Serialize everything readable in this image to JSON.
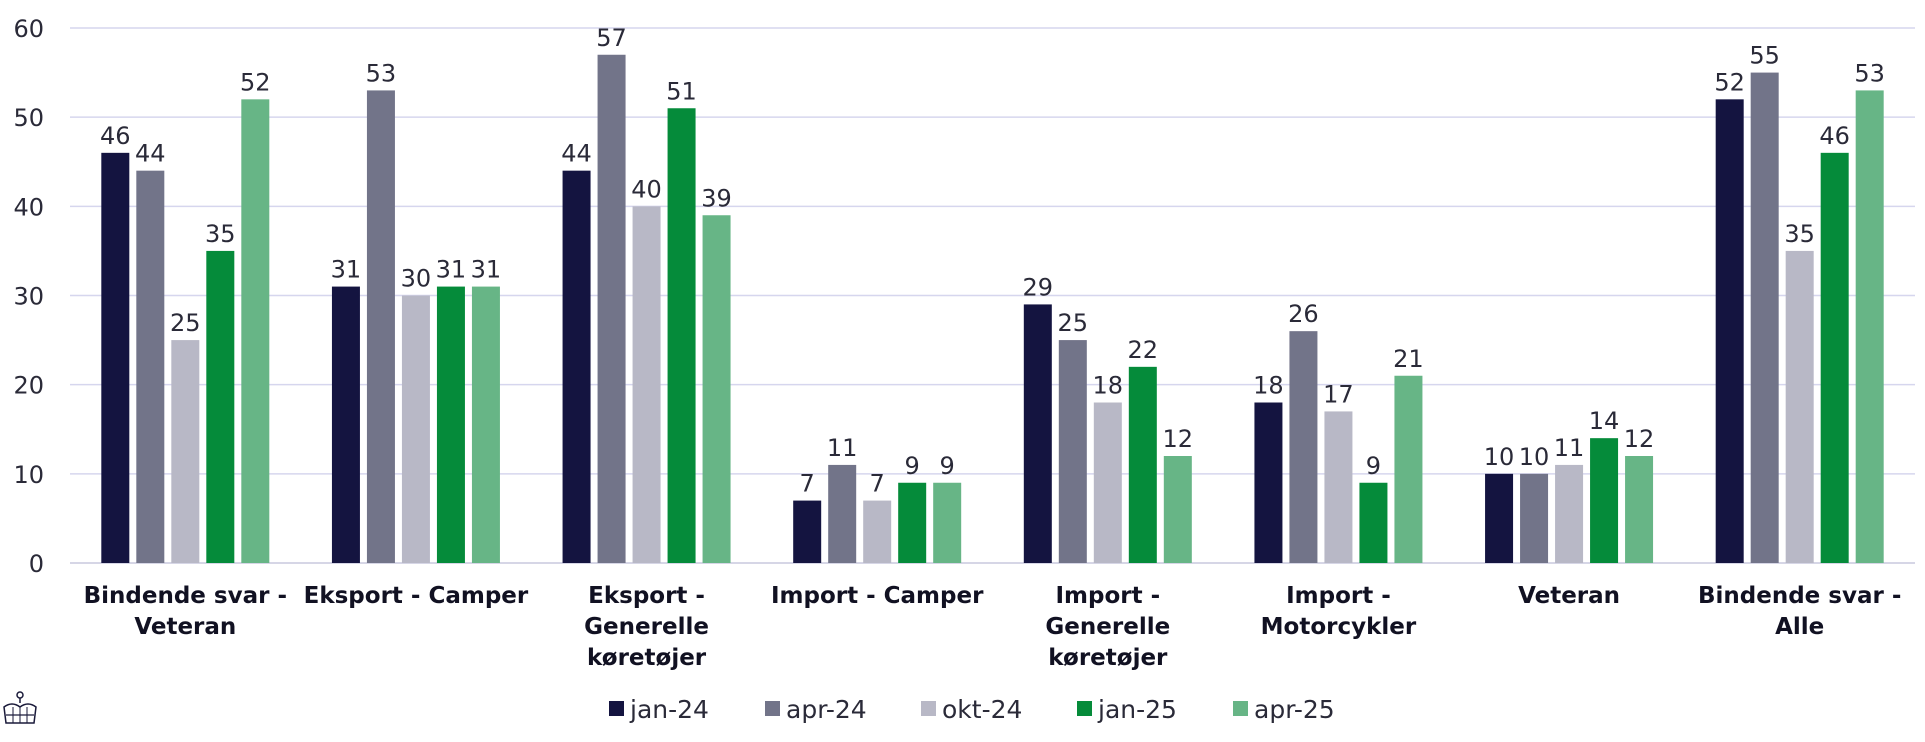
{
  "chart_data": {
    "type": "bar",
    "title": "",
    "xlabel": "",
    "ylabel": "",
    "ylim": [
      0,
      60
    ],
    "yticks": [
      0,
      10,
      20,
      30,
      40,
      50,
      60
    ],
    "grid": true,
    "legend_position": "bottom",
    "categories": [
      [
        "Bindende svar -",
        "Veteran"
      ],
      [
        "Eksport - Camper"
      ],
      [
        "Eksport -",
        "Generelle",
        "køretøjer"
      ],
      [
        "Import - Camper"
      ],
      [
        "Import -",
        "Generelle",
        "køretøjer"
      ],
      [
        "Import -",
        "Motorcykler"
      ],
      [
        "Veteran"
      ],
      [
        "Bindende svar -",
        "Alle"
      ]
    ],
    "series": [
      {
        "name": "jan-24",
        "color": "#141440",
        "values": [
          46,
          31,
          44,
          7,
          29,
          18,
          10,
          52
        ]
      },
      {
        "name": "apr-24",
        "color": "#727489",
        "values": [
          44,
          53,
          57,
          11,
          25,
          26,
          10,
          55
        ]
      },
      {
        "name": "okt-24",
        "color": "#b8b8c6",
        "values": [
          25,
          30,
          40,
          7,
          18,
          17,
          11,
          35
        ]
      },
      {
        "name": "jan-25",
        "color": "#058b3a",
        "values": [
          35,
          31,
          51,
          9,
          22,
          9,
          14,
          46
        ]
      },
      {
        "name": "apr-25",
        "color": "#67b586",
        "values": [
          52,
          31,
          39,
          9,
          12,
          21,
          12,
          53
        ]
      }
    ],
    "colors": {
      "grid": "#d6d6ee",
      "axis": "#c9c9dd",
      "text": "#2a2a38"
    }
  },
  "logo": {
    "icon": "crown-icon"
  }
}
